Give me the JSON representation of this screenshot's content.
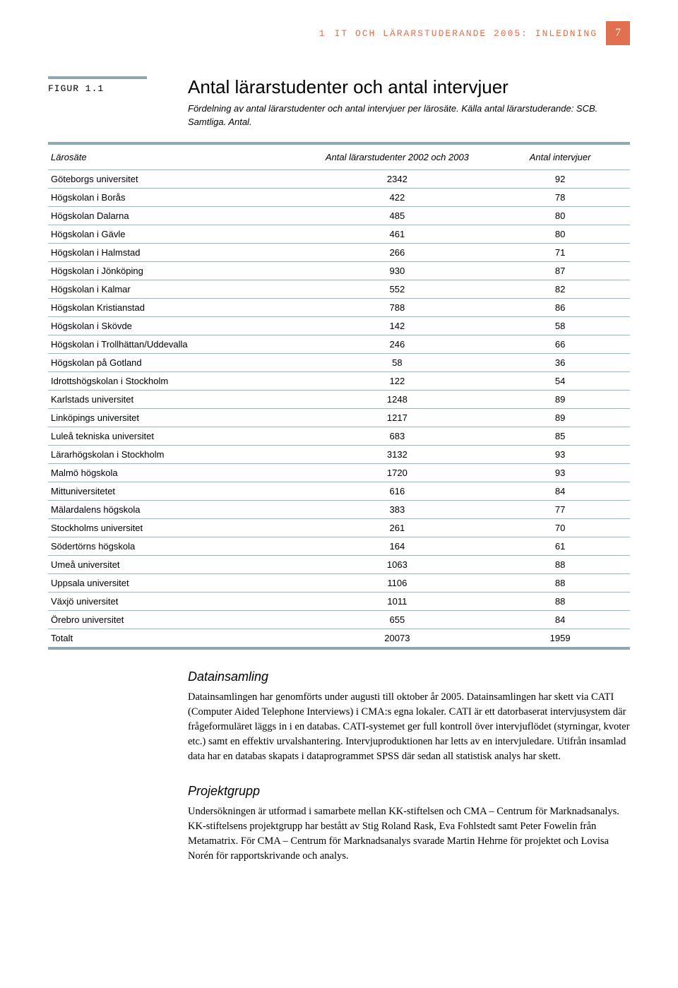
{
  "header": {
    "section_number": "1",
    "running_head": "IT OCH LÄRARSTUDERANDE 2005: INLEDNING",
    "page_number": "7"
  },
  "figure": {
    "label": "figur 1.1",
    "title": "Antal lärarstudenter och antal intervjuer",
    "subtitle": "Fördelning av antal lärarstudenter och antal intervjuer per lärosäte.\nKälla antal lärarstuderande: SCB. Samtliga. Antal."
  },
  "table": {
    "columns": [
      "Lärosäte",
      "Antal lärarstudenter 2002 och 2003",
      "Antal intervjuer"
    ],
    "rows": [
      [
        "Göteborgs universitet",
        "2342",
        "92"
      ],
      [
        "Högskolan i Borås",
        "422",
        "78"
      ],
      [
        "Högskolan Dalarna",
        "485",
        "80"
      ],
      [
        "Högskolan i Gävle",
        "461",
        "80"
      ],
      [
        "Högskolan i Halmstad",
        "266",
        "71"
      ],
      [
        "Högskolan i Jönköping",
        "930",
        "87"
      ],
      [
        "Högskolan i Kalmar",
        "552",
        "82"
      ],
      [
        "Högskolan Kristianstad",
        "788",
        "86"
      ],
      [
        "Högskolan i Skövde",
        "142",
        "58"
      ],
      [
        "Högskolan i Trollhättan/Uddevalla",
        "246",
        "66"
      ],
      [
        "Högskolan på Gotland",
        "58",
        "36"
      ],
      [
        "Idrottshögskolan i Stockholm",
        "122",
        "54"
      ],
      [
        "Karlstads universitet",
        "1248",
        "89"
      ],
      [
        "Linköpings universitet",
        "1217",
        "89"
      ],
      [
        "Luleå tekniska universitet",
        "683",
        "85"
      ],
      [
        "Lärarhögskolan i Stockholm",
        "3132",
        "93"
      ],
      [
        "Malmö högskola",
        "1720",
        "93"
      ],
      [
        "Mittuniversitetet",
        "616",
        "84"
      ],
      [
        "Mälardalens högskola",
        "383",
        "77"
      ],
      [
        "Stockholms universitet",
        "261",
        "70"
      ],
      [
        "Södertörns högskola",
        "164",
        "61"
      ],
      [
        "Umeå universitet",
        "1063",
        "88"
      ],
      [
        "Uppsala universitet",
        "1106",
        "88"
      ],
      [
        "Växjö universitet",
        "1011",
        "88"
      ],
      [
        "Örebro universitet",
        "655",
        "84"
      ],
      [
        "Totalt",
        "20073",
        "1959"
      ]
    ]
  },
  "sections": [
    {
      "heading": "Datainsamling",
      "text": "Datainsamlingen har genomförts under augusti till oktober år 2005. Datainsamlingen har skett via CATI (Computer Aided Telephone Interviews) i CMA:s egna lokaler. CATI är ett datorbaserat intervjusystem där frågeformuläret läggs in i en databas. CATI-systemet ger full kontroll över intervjuflödet (styrningar, kvoter etc.) samt en effektiv urvalshantering. Intervjuproduktionen har letts av en intervjuledare. Utifrån insamlad data har en databas skapats i dataprogrammet SPSS där sedan all statistisk analys har skett."
    },
    {
      "heading": "Projektgrupp",
      "text": "Undersökningen är utformad i samarbete mellan KK-stiftelsen och CMA – Centrum för Marknadsanalys. KK-stiftelsens projektgrupp har bestått av Stig Roland Rask, Eva Fohlstedt samt Peter Fowelin från Metamatrix. För CMA – Centrum för Marknadsanalys svarade Martin Hehrne för projektet och Lovisa Norén för rapportskrivande och analys."
    }
  ]
}
